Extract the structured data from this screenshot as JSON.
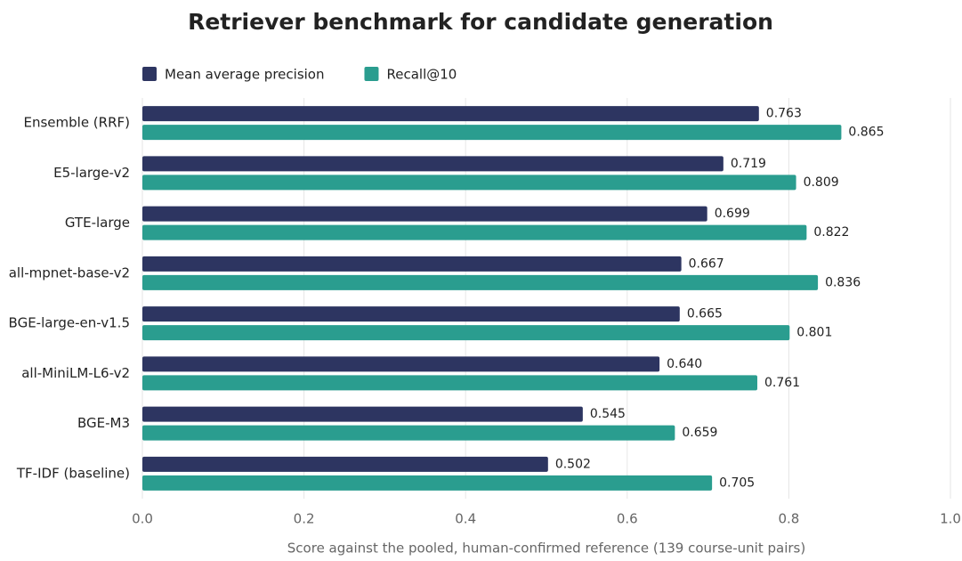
{
  "chart_data": {
    "type": "barh",
    "title": "Retriever benchmark for candidate generation",
    "xlabel": "Score against the pooled, human-confirmed reference (139 course-unit pairs)",
    "categories": [
      "Ensemble (RRF)",
      "E5-large-v2",
      "GTE-large",
      "all-mpnet-base-v2",
      "BGE-large-en-v1.5",
      "all-MiniLM-L6-v2",
      "BGE-M3",
      "TF-IDF (baseline)"
    ],
    "series": [
      {
        "name": "Mean average precision",
        "color": "#2d3561",
        "values": [
          0.763,
          0.719,
          0.699,
          0.667,
          0.665,
          0.64,
          0.545,
          0.502
        ],
        "value_labels": [
          "0.763",
          "0.719",
          "0.699",
          "0.667",
          "0.665",
          "0.640",
          "0.545",
          "0.502"
        ]
      },
      {
        "name": "Recall@10",
        "color": "#2a9d8f",
        "values": [
          0.865,
          0.809,
          0.822,
          0.836,
          0.801,
          0.761,
          0.659,
          0.705
        ],
        "value_labels": [
          "0.865",
          "0.809",
          "0.822",
          "0.836",
          "0.801",
          "0.761",
          "0.659",
          "0.705"
        ]
      }
    ],
    "xlim": [
      0,
      1
    ],
    "xticks": [
      {
        "value": 0,
        "label": "0.0"
      },
      0.2,
      0.4,
      0.6,
      0.8,
      {
        "value": 1,
        "label": "1.0"
      }
    ],
    "grid": true,
    "legend": "top-left"
  }
}
